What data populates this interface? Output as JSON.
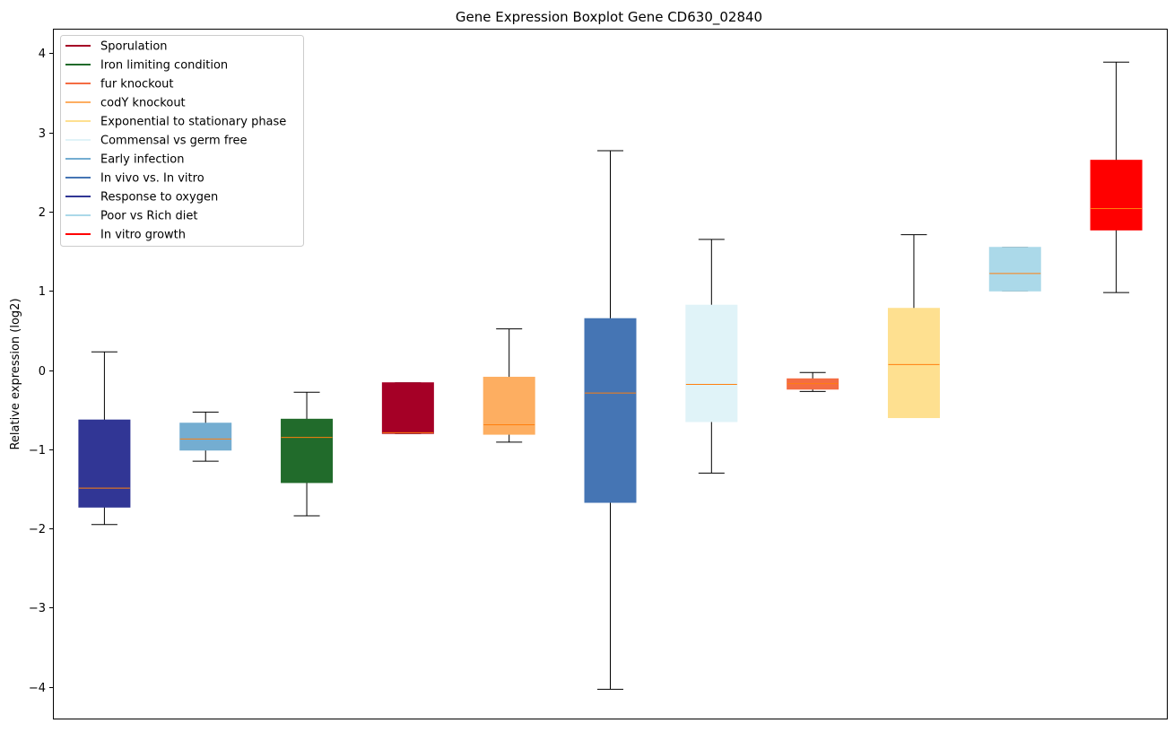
{
  "chart_data": {
    "type": "boxplot",
    "title": "Gene Expression Boxplot Gene CD630_02840",
    "xlabel": "",
    "ylabel": "Relative expression (log2)",
    "ylim": [
      -4.4,
      4.3
    ],
    "yticks": [
      -4,
      -3,
      -2,
      -1,
      0,
      1,
      2,
      3,
      4
    ],
    "ytick_labels": [
      "−4",
      "−3",
      "−2",
      "−1",
      "0",
      "1",
      "2",
      "3",
      "4"
    ],
    "grid": false,
    "legend_position": "top-left",
    "median_color": "#ff7f0e",
    "boxes": [
      {
        "name": "Response to oxygen",
        "color": "#313695",
        "whisker_low": -1.95,
        "q1": -1.73,
        "median": -1.49,
        "q3": -0.63,
        "whisker_high": 0.23
      },
      {
        "name": "Early infection",
        "color": "#74add1",
        "whisker_low": -1.15,
        "q1": -1.01,
        "median": -0.87,
        "q3": -0.67,
        "whisker_high": -0.53
      },
      {
        "name": "Iron limiting condition",
        "color": "#216b2b",
        "whisker_low": -1.84,
        "q1": -1.42,
        "median": -0.85,
        "q3": -0.62,
        "whisker_high": -0.28
      },
      {
        "name": "Sporulation",
        "color": "#a50026",
        "whisker_low": -0.8,
        "q1": -0.8,
        "median": -0.79,
        "q3": -0.16,
        "whisker_high": -0.16
      },
      {
        "name": "codY knockout",
        "color": "#fdae61",
        "whisker_low": -0.91,
        "q1": -0.81,
        "median": -0.69,
        "q3": -0.09,
        "whisker_high": 0.52
      },
      {
        "name": "In vivo vs. In vitro",
        "color": "#4575b4",
        "whisker_low": -4.03,
        "q1": -1.67,
        "median": -0.29,
        "q3": 0.65,
        "whisker_high": 2.77
      },
      {
        "name": "Commensal vs germ free",
        "color": "#e0f3f8",
        "whisker_low": -1.3,
        "q1": -0.65,
        "median": -0.18,
        "q3": 0.82,
        "whisker_high": 1.65
      },
      {
        "name": "fur knockout",
        "color": "#f46d43",
        "whisker_low": -0.27,
        "q1": -0.24,
        "median": -0.17,
        "q3": -0.11,
        "whisker_high": -0.03
      },
      {
        "name": "Exponential to stationary phase",
        "color": "#fee090",
        "whisker_low": -0.6,
        "q1": -0.6,
        "median": 0.07,
        "q3": 0.78,
        "whisker_high": 1.71
      },
      {
        "name": "Poor vs Rich diet",
        "color": "#abd9e9",
        "whisker_low": 1.0,
        "q1": 1.0,
        "median": 1.22,
        "q3": 1.55,
        "whisker_high": 1.55
      },
      {
        "name": "In vitro growth",
        "color": "#ff0000",
        "whisker_low": 0.98,
        "q1": 1.77,
        "median": 2.04,
        "q3": 2.65,
        "whisker_high": 3.89
      }
    ],
    "legend": [
      {
        "label": "Sporulation",
        "color": "#a50026"
      },
      {
        "label": "Iron limiting condition",
        "color": "#216b2b"
      },
      {
        "label": "fur knockout",
        "color": "#f46d43"
      },
      {
        "label": "codY knockout",
        "color": "#fdae61"
      },
      {
        "label": "Exponential to stationary phase",
        "color": "#fee090"
      },
      {
        "label": "Commensal vs germ free",
        "color": "#e0f3f8"
      },
      {
        "label": "Early infection",
        "color": "#74add1"
      },
      {
        "label": "In vivo vs. In vitro",
        "color": "#4575b4"
      },
      {
        "label": "Response to oxygen",
        "color": "#313695"
      },
      {
        "label": "Poor vs Rich diet",
        "color": "#abd9e9"
      },
      {
        "label": "In vitro growth",
        "color": "#ff0000"
      }
    ]
  }
}
